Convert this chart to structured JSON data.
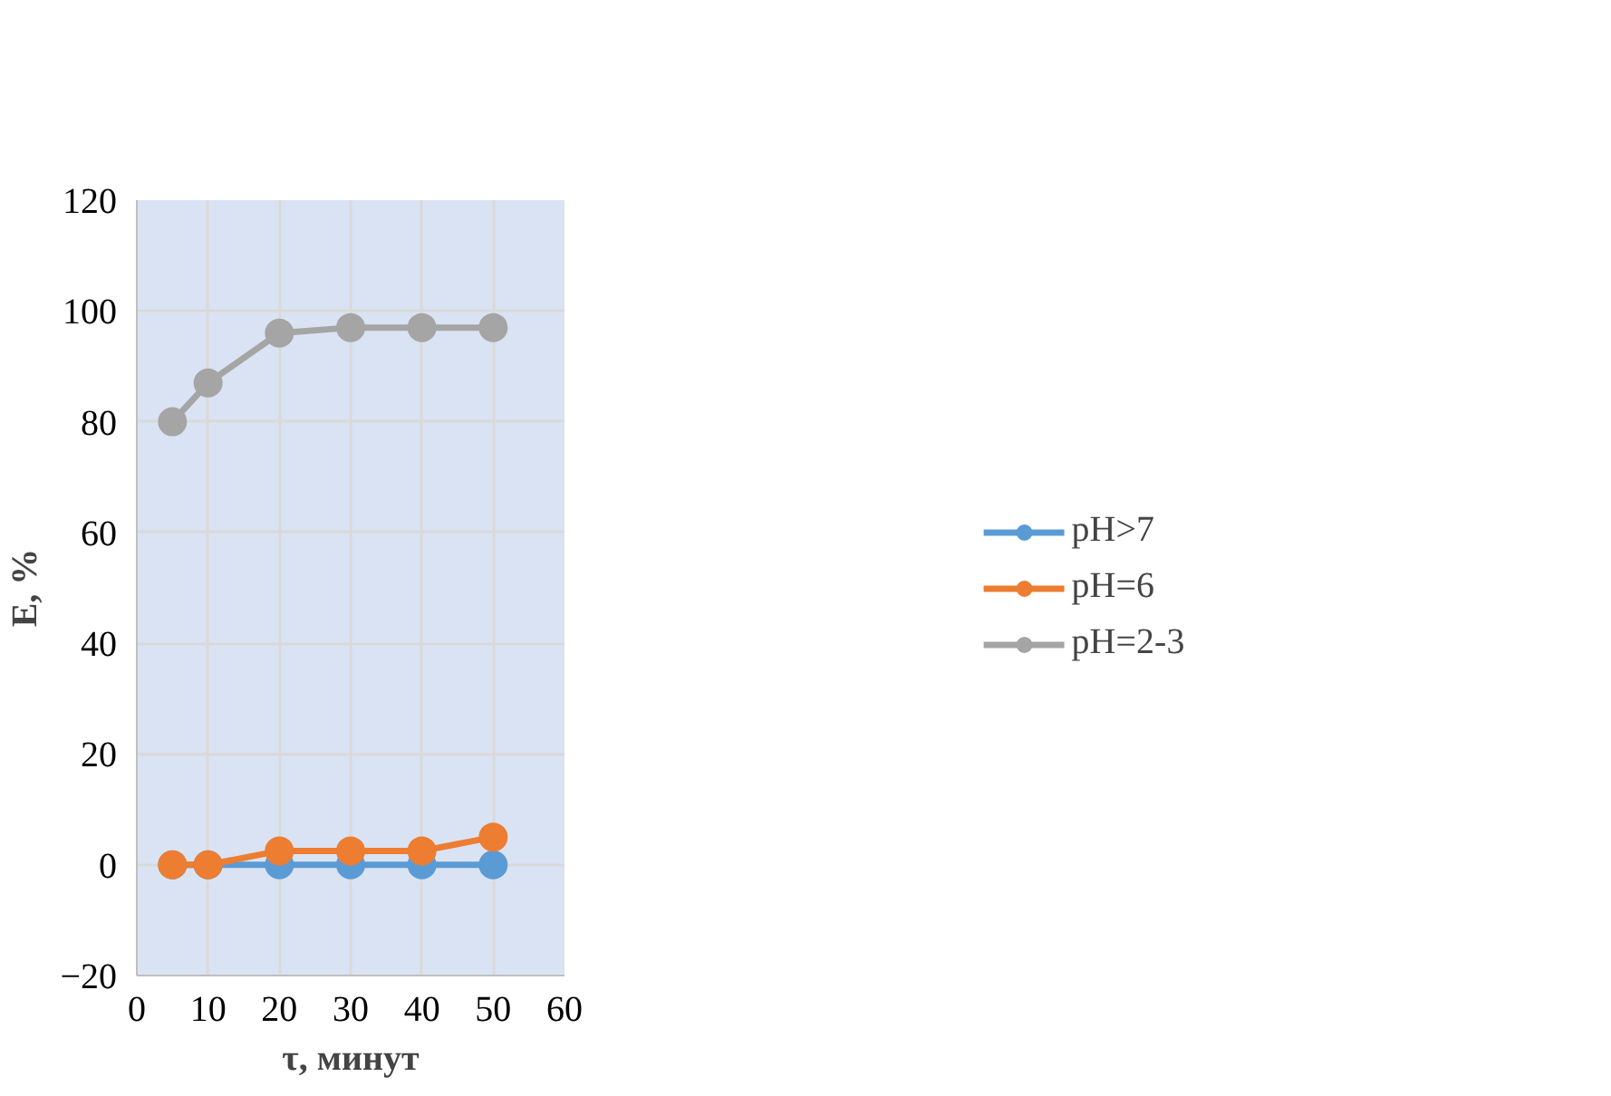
{
  "chart_data": {
    "type": "line",
    "xlabel": "τ, минут",
    "ylabel": "E, %",
    "x": [
      5,
      10,
      20,
      30,
      40,
      50
    ],
    "series": [
      {
        "name": "pH>7",
        "color": "#5b9bd5",
        "values": [
          0,
          0,
          0,
          0,
          0,
          0
        ]
      },
      {
        "name": "pH=6",
        "color": "#ed7d31",
        "values": [
          0,
          0,
          2.5,
          2.5,
          2.5,
          5
        ]
      },
      {
        "name": "pH=2-3",
        "color": "#a5a5a5",
        "values": [
          80,
          87,
          96,
          97,
          97,
          97
        ]
      }
    ],
    "xlim": [
      0,
      60
    ],
    "xticks": [
      0,
      10,
      20,
      30,
      40,
      50,
      60
    ],
    "ylim": [
      -20,
      120
    ],
    "yticks": [
      -20,
      0,
      20,
      40,
      60,
      80,
      100,
      120
    ],
    "grid": true,
    "legend": "right",
    "marker": "circle",
    "line_style": "solid"
  }
}
